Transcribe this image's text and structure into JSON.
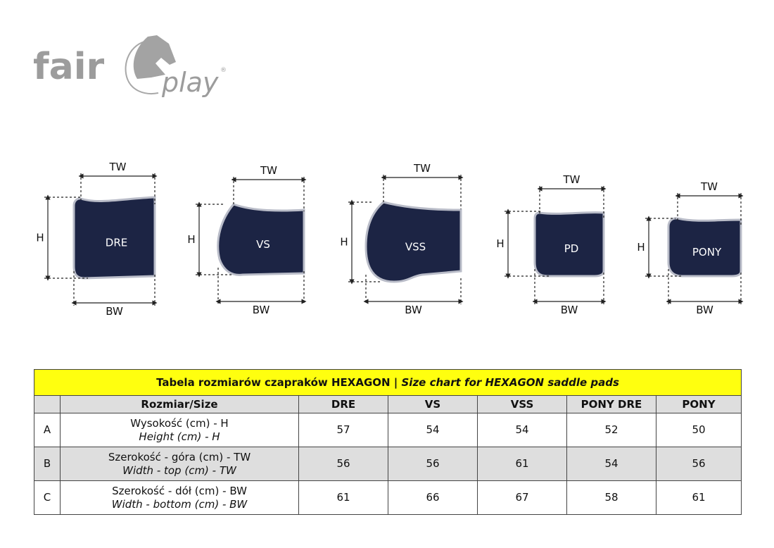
{
  "logo": {
    "text_left": "fair",
    "text_right": "play",
    "mark": "®",
    "icon": "horse-head-icon"
  },
  "pads": [
    {
      "label": "DRE",
      "tw": "TW",
      "h": "H",
      "bw": "BW"
    },
    {
      "label": "VS",
      "tw": "TW",
      "h": "H",
      "bw": "BW"
    },
    {
      "label": "VSS",
      "tw": "TW",
      "h": "H",
      "bw": "BW"
    },
    {
      "label": "PD",
      "tw": "TW",
      "h": "H",
      "bw": "BW"
    },
    {
      "label": "PONY",
      "tw": "TW",
      "h": "H",
      "bw": "BW"
    }
  ],
  "colors": {
    "pad": "#1c2444",
    "trim": "#b9bcc8",
    "title_bg": "#ffff0f",
    "header_bg": "#dedede"
  },
  "table": {
    "title_pl": "Tabela rozmiarów czapraków HEXAGON | ",
    "title_en": "Size chart for HEXAGON saddle pads",
    "size_header": "Rozmiar/Size",
    "columns": [
      "DRE",
      "VS",
      "VSS",
      "PONY DRE",
      "PONY"
    ],
    "rows": [
      {
        "letter": "A",
        "label_pl": "Wysokość (cm) - H",
        "label_en": "Height (cm) - H",
        "values": [
          "57",
          "54",
          "54",
          "52",
          "50"
        ]
      },
      {
        "letter": "B",
        "label_pl": "Szerokość - góra (cm) - TW",
        "label_en": "Width - top (cm) - TW",
        "values": [
          "56",
          "56",
          "61",
          "54",
          "56"
        ]
      },
      {
        "letter": "C",
        "label_pl": "Szerokość - dół (cm) - BW",
        "label_en": "Width - bottom (cm) - BW",
        "values": [
          "61",
          "66",
          "67",
          "58",
          "61"
        ]
      }
    ]
  }
}
